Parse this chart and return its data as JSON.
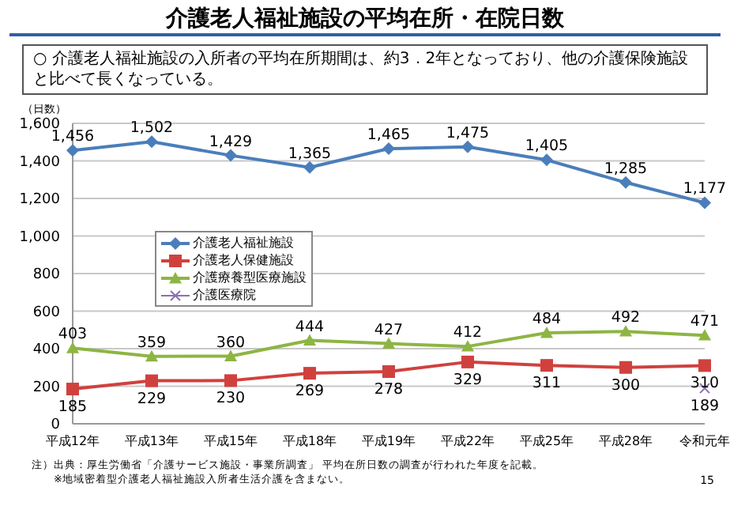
{
  "chart_data": {
    "type": "line",
    "title": "介護老人福祉施設の平均在所・在院日数",
    "subtitle": "○ 介護老人福祉施設の入所者の平均在所期間は、約3．2年となっており、他の介護保険施設と比べて長くなっている。",
    "ylabel": "（日数）",
    "categories": [
      "平成12年",
      "平成13年",
      "平成15年",
      "平成18年",
      "平成19年",
      "平成22年",
      "平成25年",
      "平成28年",
      "令和元年"
    ],
    "series": [
      {
        "name": "介護老人福祉施設",
        "color": "#4a7ebb",
        "marker": "diamond",
        "values": [
          1456,
          1502,
          1429,
          1365,
          1465,
          1475,
          1405,
          1285,
          1177
        ],
        "value_labels": [
          "1,456",
          "1,502",
          "1,429",
          "1,365",
          "1,465",
          "1,475",
          "1,405",
          "1,285",
          "1,177"
        ]
      },
      {
        "name": "介護老人保健施設",
        "color": "#d0413e",
        "marker": "square",
        "values": [
          185,
          229,
          230,
          269,
          278,
          329,
          311,
          300,
          310
        ],
        "value_labels": [
          "185",
          "229",
          "230",
          "269",
          "278",
          "329",
          "311",
          "300",
          "310"
        ]
      },
      {
        "name": "介護療養型医療施設",
        "color": "#8db543",
        "marker": "triangle",
        "values": [
          403,
          359,
          360,
          444,
          427,
          412,
          484,
          492,
          471
        ],
        "value_labels": [
          "403",
          "359",
          "360",
          "444",
          "427",
          "412",
          "484",
          "492",
          "471"
        ]
      },
      {
        "name": "介護医療院",
        "color": "#8a6fb4",
        "marker": "cross",
        "values": [
          null,
          null,
          null,
          null,
          null,
          null,
          null,
          null,
          189
        ],
        "value_labels": [
          null,
          null,
          null,
          null,
          null,
          null,
          null,
          null,
          "189"
        ]
      }
    ],
    "ylim": [
      0,
      1600
    ],
    "yticks": [
      0,
      200,
      400,
      600,
      800,
      {
        "value": 1000,
        "label": "1,000"
      },
      {
        "value": 1200,
        "label": "1,200"
      },
      {
        "value": 1400,
        "label": "1,400"
      },
      {
        "value": 1600,
        "label": "1,600"
      }
    ],
    "grid": "y",
    "legend": "left",
    "annotations": [
      "注）出典：厚生労働省「介護サービス施設・事業所調査」 平均在所日数の調査が行われた年度を記載。",
      "※地域密着型介護老人福祉施設入所者生活介護を含まない。",
      "15"
    ]
  }
}
